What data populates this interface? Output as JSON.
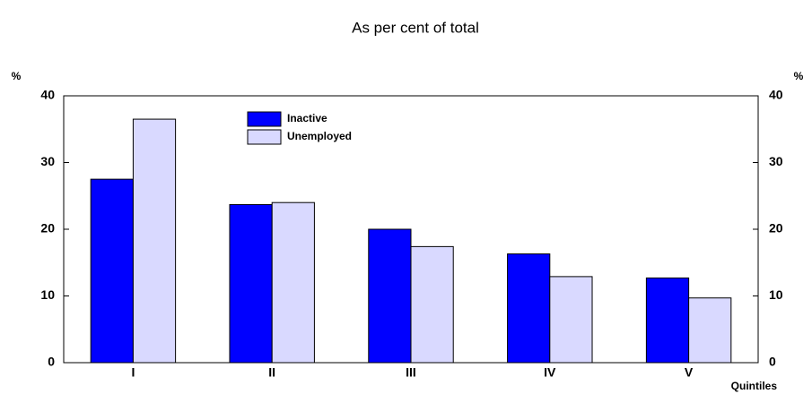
{
  "chart_data": {
    "type": "bar",
    "title": "As per cent of total",
    "y_label": "%",
    "y2_label": "%",
    "x_label": "Quintiles",
    "categories": [
      "I",
      "II",
      "III",
      "IV",
      "V"
    ],
    "series": [
      {
        "name": "Inactive",
        "color": "#0000ff",
        "values": [
          27.5,
          23.7,
          20.0,
          16.3,
          12.7
        ]
      },
      {
        "name": "Unemployed",
        "color": "#d9d9ff",
        "values": [
          36.5,
          24.0,
          17.4,
          12.9,
          9.7
        ]
      }
    ],
    "ylim": [
      0,
      40
    ],
    "yticks": [
      0,
      10,
      20,
      30,
      40
    ],
    "y2lim": [
      0,
      40
    ],
    "y2ticks": [
      0,
      10,
      20,
      30,
      40
    ],
    "legend": "upper-left"
  }
}
